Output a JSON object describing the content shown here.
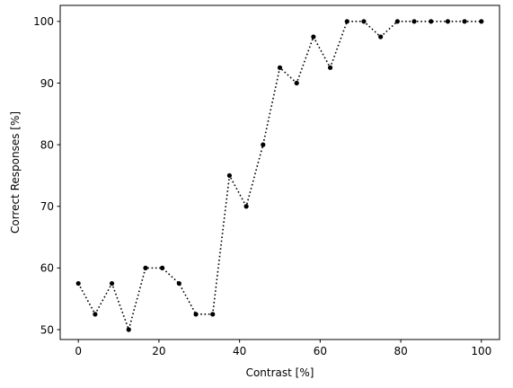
{
  "chart_data": {
    "type": "line",
    "title": "",
    "xlabel": "Contrast [%]",
    "ylabel": "Correct Responses [%]",
    "xlim": [
      -4.5,
      104.5
    ],
    "ylim": [
      48.4,
      102.6
    ],
    "xticks": [
      0,
      20,
      40,
      60,
      80,
      100
    ],
    "yticks": [
      50,
      60,
      70,
      80,
      90,
      100
    ],
    "grid": false,
    "line_style": "dotted",
    "marker": "circle",
    "color": "#000000",
    "series": [
      {
        "x": [
          0,
          4.17,
          8.33,
          12.5,
          16.67,
          20.83,
          25,
          29.17,
          33.33,
          37.5,
          41.67,
          45.83,
          50,
          54.17,
          58.33,
          62.5,
          66.67,
          70.83,
          75,
          79.17,
          83.33,
          87.5,
          91.67,
          95.83,
          100
        ],
        "y": [
          57.5,
          52.5,
          57.5,
          50,
          60,
          60,
          57.5,
          52.5,
          52.5,
          75,
          70,
          80,
          92.5,
          90,
          97.5,
          92.5,
          100,
          100,
          97.5,
          100,
          100,
          100,
          100,
          100,
          100
        ]
      }
    ]
  }
}
